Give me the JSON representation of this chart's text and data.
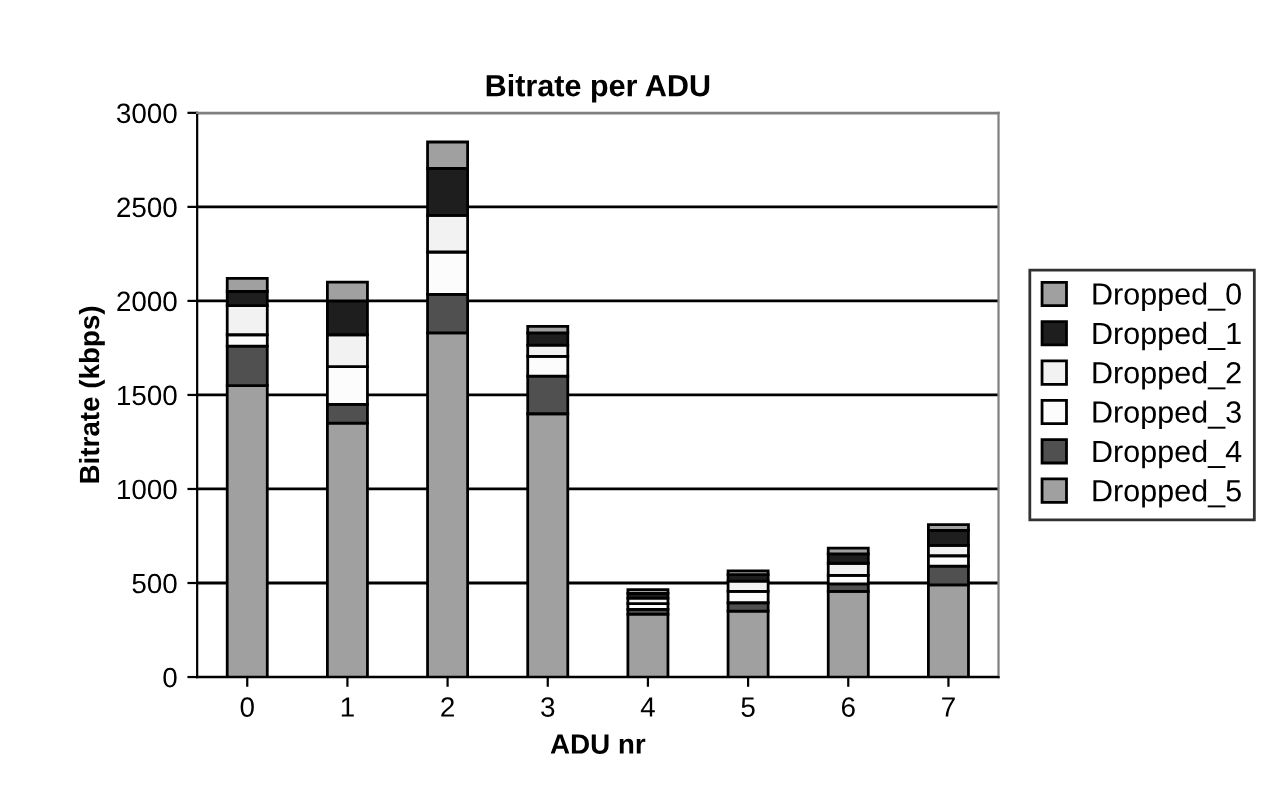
{
  "chart_data": {
    "type": "bar",
    "title": "Bitrate per ADU",
    "xlabel": "ADU nr",
    "ylabel": "Bitrate (kbps)",
    "categories": [
      "0",
      "1",
      "2",
      "3",
      "4",
      "5",
      "6",
      "7"
    ],
    "stacked": true,
    "ylim": [
      0,
      3000
    ],
    "yticks": [
      0,
      500,
      1000,
      1500,
      2000,
      2500,
      3000
    ],
    "grid": "y",
    "legend": "right",
    "series": [
      {
        "name": "Dropped_5",
        "color": "#a0a0a0",
        "values": [
          1550,
          1350,
          1830,
          1400,
          335,
          350,
          455,
          490
        ]
      },
      {
        "name": "Dropped_4",
        "color": "#505050",
        "values": [
          210,
          100,
          205,
          200,
          25,
          45,
          40,
          100
        ]
      },
      {
        "name": "Dropped_3",
        "color": "#fcfcfc",
        "values": [
          60,
          200,
          225,
          105,
          30,
          60,
          45,
          55
        ]
      },
      {
        "name": "Dropped_2",
        "color": "#f2f2f2",
        "values": [
          155,
          170,
          195,
          60,
          30,
          55,
          65,
          55
        ]
      },
      {
        "name": "Dropped_1",
        "color": "#1e1e1e",
        "values": [
          75,
          180,
          250,
          65,
          25,
          35,
          50,
          80
        ]
      },
      {
        "name": "Dropped_0",
        "color": "#a0a0a0",
        "values": [
          70,
          100,
          140,
          35,
          20,
          20,
          30,
          30
        ]
      }
    ]
  }
}
